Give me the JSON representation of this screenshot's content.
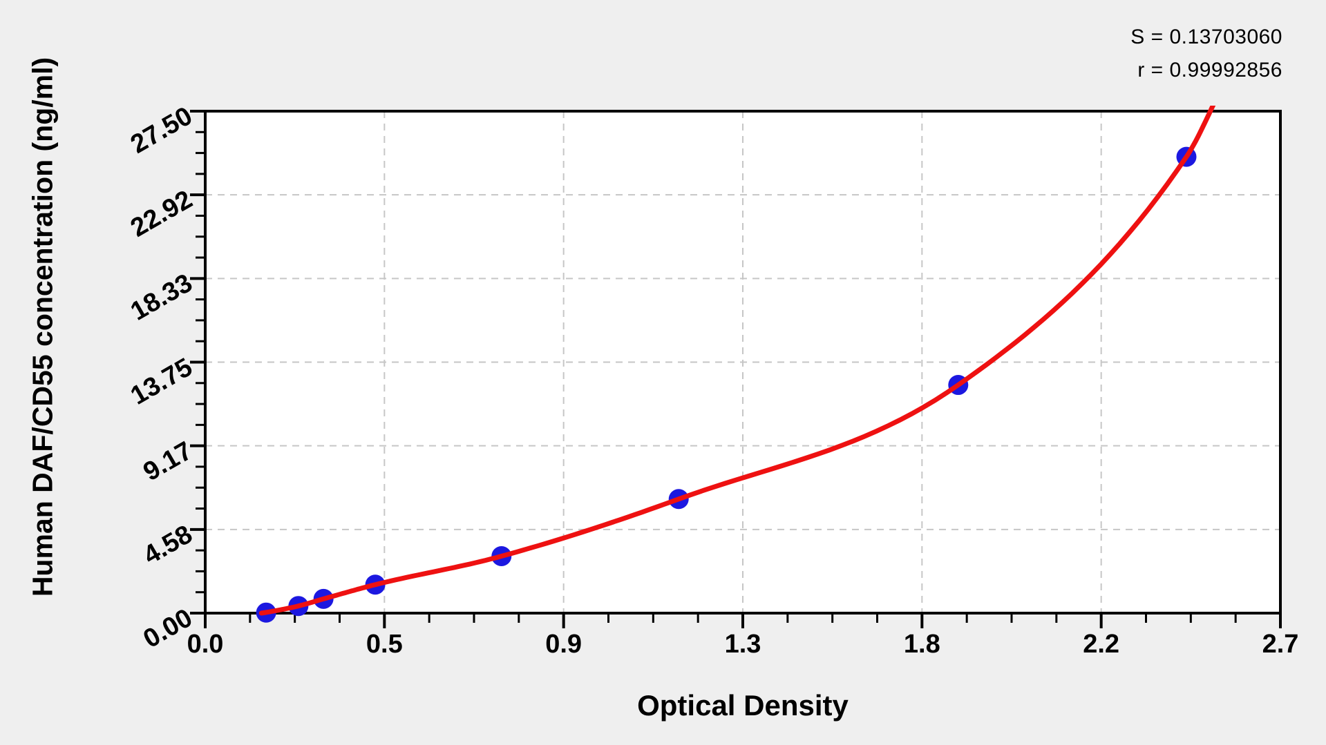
{
  "page": {
    "background": "#efefef"
  },
  "chart_data": {
    "type": "scatter",
    "title": "",
    "xlabel": "Optical Density",
    "ylabel": "Human DAF/CD55 concentration (ng/ml)",
    "xlim": [
      0,
      2.7
    ],
    "ylim": [
      0,
      27.5
    ],
    "grid": {
      "style": "dashed",
      "color": "#c6c6c6",
      "at": "major-ticks"
    },
    "legend_position": "none",
    "x_ticks": {
      "major": [
        {
          "v": 0,
          "label": "0.0"
        },
        {
          "v": 0.45,
          "label": "0.5"
        },
        {
          "v": 0.9,
          "label": "0.9"
        },
        {
          "v": 1.35,
          "label": "1.3"
        },
        {
          "v": 1.8,
          "label": "1.8"
        },
        {
          "v": 2.25,
          "label": "2.2"
        },
        {
          "v": 2.7,
          "label": "2.7"
        }
      ],
      "minor_step": 0.1125
    },
    "y_ticks": {
      "major": [
        {
          "v": 0,
          "label": "0.00"
        },
        {
          "v": 4.5833,
          "label": "4.58"
        },
        {
          "v": 9.1667,
          "label": "9.17"
        },
        {
          "v": 13.75,
          "label": "13.75"
        },
        {
          "v": 18.3333,
          "label": "18.33"
        },
        {
          "v": 22.9167,
          "label": "22.92"
        },
        {
          "v": 27.5,
          "label": "27.50"
        }
      ],
      "minor_step": 1.1458333
    },
    "series": [
      {
        "name": "standard-points",
        "type": "scatter",
        "color": "#1c18e0",
        "marker": "circle",
        "marker_radius": 14.5,
        "points": [
          {
            "x": 0.153,
            "y": 0.03
          },
          {
            "x": 0.234,
            "y": 0.39
          },
          {
            "x": 0.297,
            "y": 0.78
          },
          {
            "x": 0.427,
            "y": 1.56
          },
          {
            "x": 0.744,
            "y": 3.12
          },
          {
            "x": 1.189,
            "y": 6.25
          },
          {
            "x": 1.891,
            "y": 12.5
          },
          {
            "x": 2.464,
            "y": 25.0
          }
        ]
      },
      {
        "name": "fitted-curve",
        "type": "line",
        "color": "#ee1111",
        "width": 7,
        "anchors": [
          {
            "x": 0.141,
            "y": 0.0
          },
          {
            "x": 0.153,
            "y": 0.04
          },
          {
            "x": 0.234,
            "y": 0.39
          },
          {
            "x": 0.297,
            "y": 0.78
          },
          {
            "x": 0.427,
            "y": 1.56
          },
          {
            "x": 0.744,
            "y": 3.12
          },
          {
            "x": 1.189,
            "y": 6.25
          },
          {
            "x": 1.891,
            "y": 12.5
          },
          {
            "x": 2.464,
            "y": 25.0
          },
          {
            "x": 2.555,
            "y": 28.9
          }
        ]
      }
    ],
    "annotations": [
      {
        "text": "S = 0.13703060"
      },
      {
        "text": "r = 0.99992856"
      }
    ],
    "colors": {
      "point": "#1c18e0",
      "curve": "#ee1111",
      "grid": "#c6c6c6",
      "axis": "#000000",
      "plot_background": "#ffffff",
      "page_background": "#efefef"
    }
  }
}
